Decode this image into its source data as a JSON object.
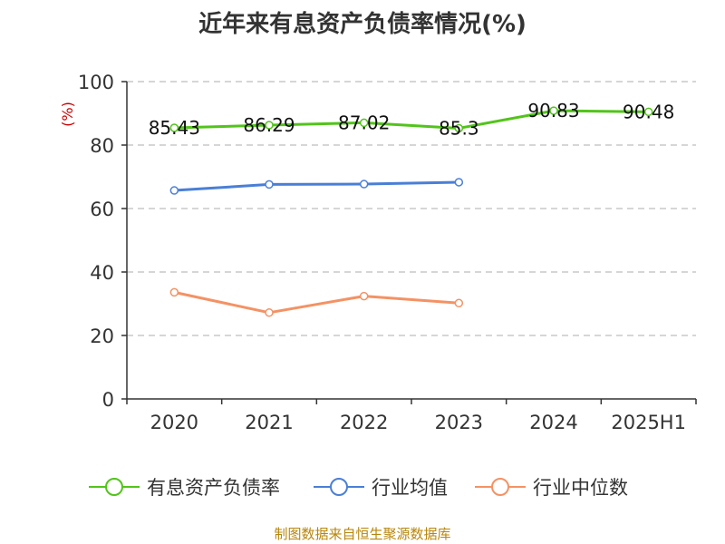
{
  "chart_data": {
    "type": "line",
    "title": "近年来有息资产负债率情况(%)",
    "ylabel": "(%)",
    "xlabel": "",
    "categories": [
      "2020",
      "2021",
      "2022",
      "2023",
      "2024",
      "2025H1"
    ],
    "ylim": [
      0,
      100
    ],
    "yticks": [
      0,
      20,
      40,
      60,
      80,
      100
    ],
    "grid": true,
    "legend_position": "bottom",
    "series": [
      {
        "name": "有息资产负债率",
        "color": "#52c41a",
        "values": [
          85.43,
          86.29,
          87.02,
          85.3,
          90.83,
          90.48
        ],
        "labels": [
          "85.43",
          "86.29",
          "87.02",
          "85.3",
          "90.83",
          "90.48"
        ]
      },
      {
        "name": "行业均值",
        "color": "#4a7fd6",
        "values": [
          65.7,
          67.6,
          67.7,
          68.3,
          null,
          null
        ]
      },
      {
        "name": "行业中位数",
        "color": "#f49264",
        "values": [
          33.6,
          27.2,
          32.4,
          30.2,
          null,
          null
        ]
      }
    ]
  },
  "footer": {
    "source": "制图数据来自恒生聚源数据库"
  },
  "colors": {
    "ylabel": "#cc0000",
    "axis": "#333333",
    "grid": "#c8c8c8",
    "source": "#b8860b"
  }
}
